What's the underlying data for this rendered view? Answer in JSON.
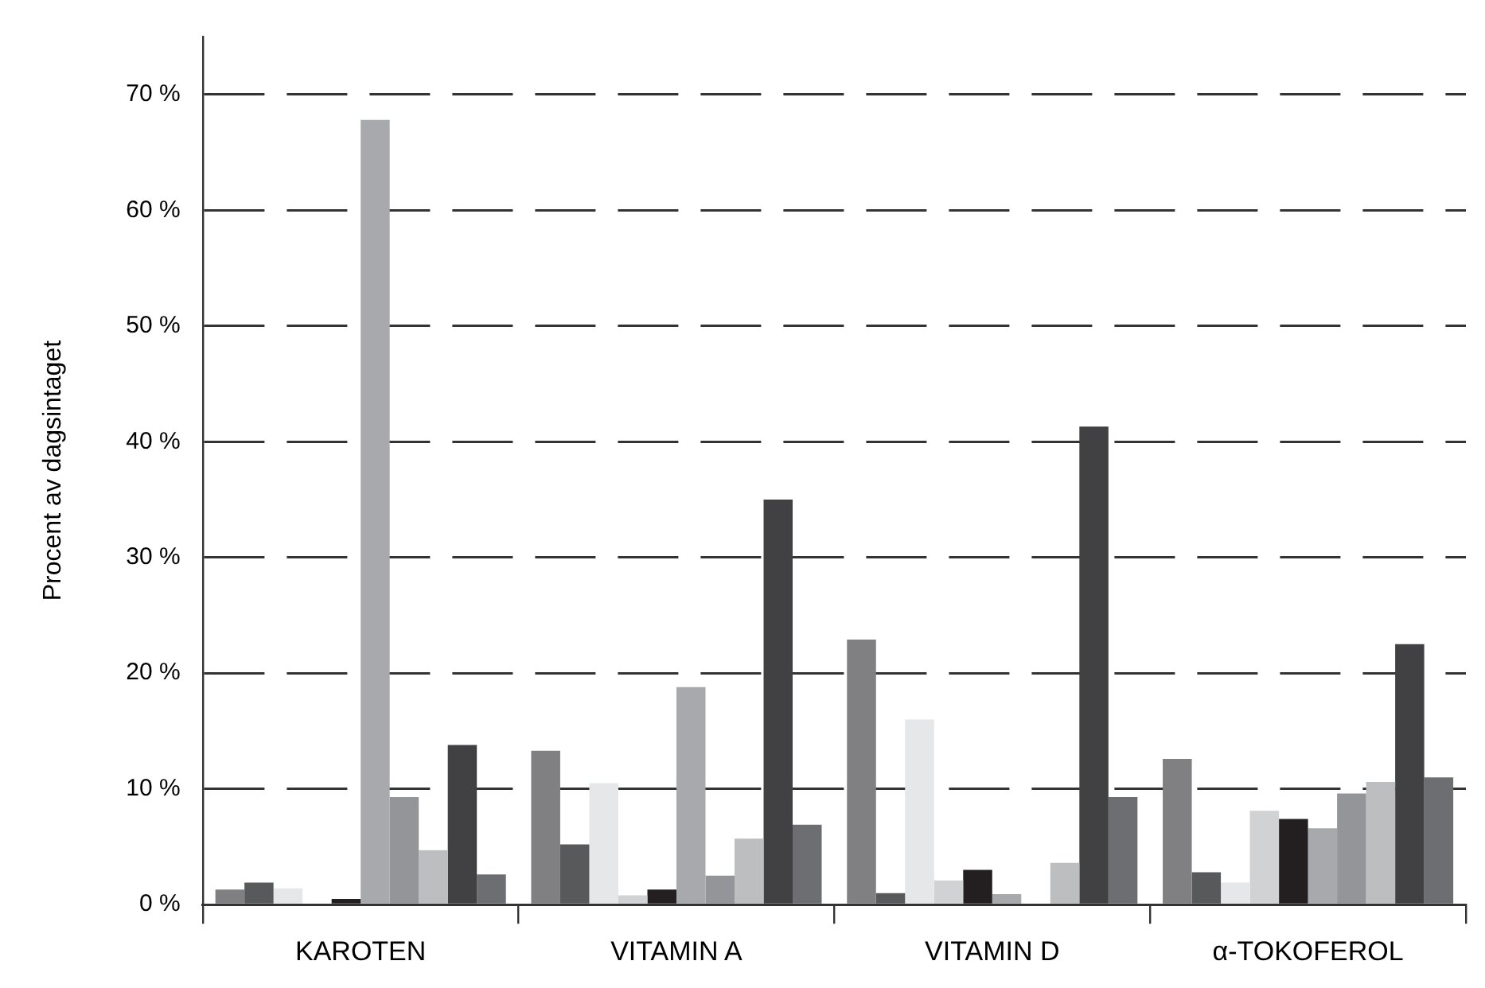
{
  "chart_data": {
    "type": "bar",
    "ylabel": "Procent av dagsintaget",
    "categories": [
      "KAROTEN",
      "VITAMIN A",
      "VITAMIN D",
      "α-TOKOFEROL"
    ],
    "series": [
      {
        "color": "#808083",
        "values": [
          1.3,
          13.3,
          22.9,
          12.6
        ]
      },
      {
        "color": "#58595b",
        "values": [
          1.9,
          5.2,
          1.0,
          2.8
        ]
      },
      {
        "color": "#e6e7e8",
        "values": [
          1.4,
          10.5,
          16.0,
          1.9
        ]
      },
      {
        "color": "#d1d2d4",
        "values": [
          null,
          0.8,
          2.1,
          8.1
        ]
      },
      {
        "color": "#231f20",
        "values": [
          0.5,
          1.3,
          3.0,
          7.4
        ]
      },
      {
        "color": "#a7a9ac",
        "values": [
          67.8,
          18.8,
          0.9,
          6.6
        ]
      },
      {
        "color": "#939598",
        "values": [
          9.3,
          2.5,
          null,
          9.6
        ]
      },
      {
        "color": "#bcbec0",
        "values": [
          4.7,
          5.7,
          3.6,
          10.6
        ]
      },
      {
        "color": "#414042",
        "values": [
          13.8,
          35.0,
          41.3,
          22.5
        ]
      },
      {
        "color": "#6d6e71",
        "values": [
          2.6,
          6.9,
          9.3,
          11.0
        ]
      }
    ],
    "ylim": [
      0,
      75
    ],
    "yticks": [
      {
        "value": 0,
        "label": "0 %"
      },
      {
        "value": 10,
        "label": "10 %"
      },
      {
        "value": 20,
        "label": "20 %"
      },
      {
        "value": 30,
        "label": "30 %"
      },
      {
        "value": 40,
        "label": "40 %"
      },
      {
        "value": 50,
        "label": "50 %"
      },
      {
        "value": 60,
        "label": "60 %"
      },
      {
        "value": 70,
        "label": "70 %"
      }
    ],
    "grid": "y",
    "legend": false
  }
}
